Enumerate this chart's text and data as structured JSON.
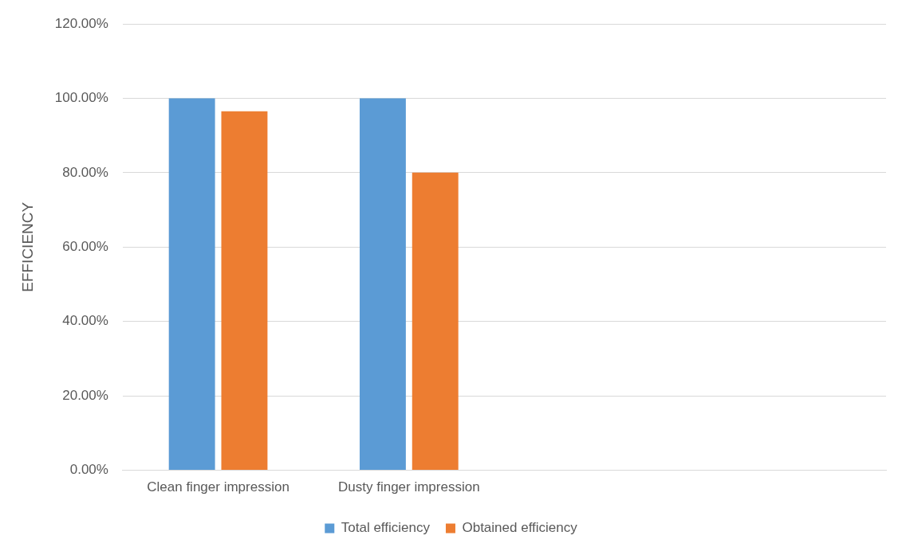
{
  "chart_data": {
    "type": "bar",
    "ylabel": "EFFICIENCY",
    "categories": [
      "Clean finger impression",
      "Dusty finger impression",
      null,
      null
    ],
    "series": [
      {
        "name": "Total efficiency",
        "color": "#5b9bd5",
        "values": [
          100,
          100,
          null,
          null
        ]
      },
      {
        "name": "Obtained efficiency",
        "color": "#ed7d31",
        "values": [
          96.5,
          80,
          null,
          null
        ]
      }
    ],
    "ylim": [
      0,
      120
    ],
    "yticks": [
      {
        "value": 0,
        "label": "0.00%"
      },
      {
        "value": 20,
        "label": "20.00%"
      },
      {
        "value": 40,
        "label": "40.00%"
      },
      {
        "value": 60,
        "label": "60.00%"
      },
      {
        "value": 80,
        "label": "80.00%"
      },
      {
        "value": 100,
        "label": "100.00%"
      },
      {
        "value": 120,
        "label": "120.00%"
      }
    ],
    "grid": "y",
    "legend": "bottom"
  }
}
